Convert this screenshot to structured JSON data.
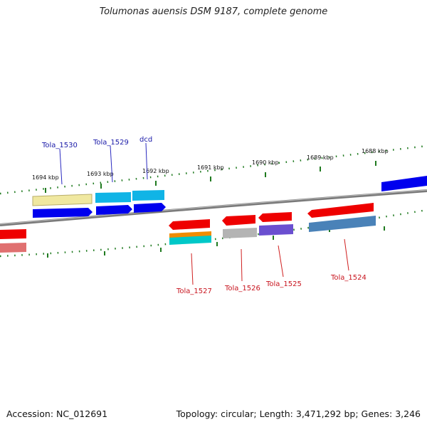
{
  "header": {
    "title": "Tolumonas auensis DSM 9187, complete genome"
  },
  "footer": {
    "accession": "Accession: NC_012691",
    "summary": "Topology: circular; Length: 3,471,292 bp; Genes: 3,246"
  },
  "scale": {
    "ticks": [
      "1694 kbp",
      "1693 kbp",
      "1692 kbp",
      "1691 kbp",
      "1690 kbp",
      "1689 kbp",
      "1688 kbp"
    ]
  },
  "genes": {
    "labels_top": [
      "Tola_1530",
      "Tola_1529",
      "dcd"
    ],
    "labels_bottom": [
      "Tola_1527",
      "Tola_1526",
      "Tola_1525",
      "Tola_1524"
    ]
  },
  "colors": {
    "backbone": "#7a7a7a",
    "tick": "#1f7a1f",
    "red": "#ee0000",
    "blue": "#0000ee",
    "cyan": "#10b4e6",
    "khaki": "#f0e8a0",
    "orange": "#f08c00",
    "teal": "#00c8c8",
    "grey": "#b4b4b4",
    "purple": "#6a4fd0",
    "steel": "#4a82b8",
    "pink": "#e07070"
  }
}
